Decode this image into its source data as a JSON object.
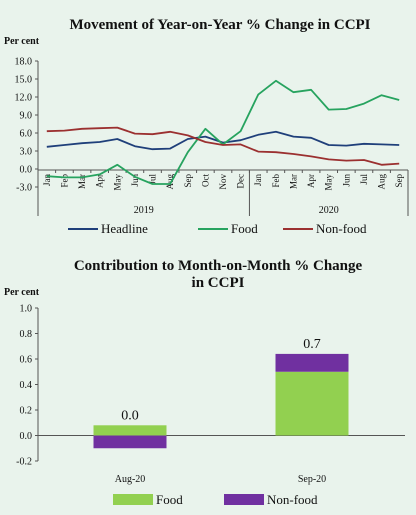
{
  "chart_data": [
    {
      "type": "line",
      "title": "Movement of Year-on-Year % Change in CCPI",
      "ylabel": "Per cent",
      "ylim": [
        -3.0,
        18.0
      ],
      "yticks": [
        "18.0",
        "15.0",
        "12.0",
        "9.0",
        "6.0",
        "3.0",
        "0.0",
        "-3.0"
      ],
      "categories": [
        "Jan",
        "Feb",
        "Mar",
        "Apr",
        "May",
        "Jun",
        "Jul",
        "Aug",
        "Sep",
        "Oct",
        "Nov",
        "Dec",
        "Jan",
        "Feb",
        "Mar",
        "Apr",
        "May",
        "Jun",
        "Jul",
        "Aug",
        "Sep"
      ],
      "year_labels": [
        "2019",
        "2020"
      ],
      "grid": false,
      "legend_position": "bottom",
      "series": [
        {
          "name": "Headline",
          "color": "#1f3f7a",
          "values": [
            3.7,
            4.0,
            4.3,
            4.5,
            5.0,
            3.8,
            3.3,
            3.4,
            5.0,
            5.4,
            4.4,
            4.8,
            5.7,
            6.2,
            5.4,
            5.2,
            4.0,
            3.9,
            4.2,
            4.1,
            4.0
          ]
        },
        {
          "name": "Food",
          "color": "#27a35f",
          "values": [
            -1.2,
            -1.4,
            -1.4,
            -0.9,
            0.7,
            -1.3,
            -2.5,
            -2.5,
            2.8,
            6.7,
            4.1,
            6.3,
            12.4,
            14.7,
            12.8,
            13.2,
            9.9,
            10.0,
            10.9,
            12.3,
            11.5
          ]
        },
        {
          "name": "Non-food",
          "color": "#9b3030",
          "values": [
            6.3,
            6.4,
            6.7,
            6.8,
            6.9,
            5.9,
            5.8,
            6.2,
            5.6,
            4.5,
            4.0,
            4.1,
            2.9,
            2.8,
            2.5,
            2.1,
            1.6,
            1.4,
            1.5,
            0.7,
            0.9
          ]
        }
      ]
    },
    {
      "type": "bar",
      "title": "Contribution to Month-on-Month % Change in CCPI",
      "title_lines": [
        "Contribution to Month-on-Month % Change",
        "in CCPI"
      ],
      "ylabel": "Per cent",
      "ylim": [
        -0.2,
        1.0
      ],
      "yticks": [
        "1.0",
        "0.8",
        "0.6",
        "0.4",
        "0.2",
        "0.0",
        "-0.2"
      ],
      "categories": [
        "Aug-20",
        "Sep-20"
      ],
      "totals": [
        "0.0",
        "0.7"
      ],
      "stacked": true,
      "grid": false,
      "legend_position": "bottom",
      "series": [
        {
          "name": "Food",
          "color": "#92d050",
          "values": [
            0.08,
            0.5
          ]
        },
        {
          "name": "Non-food",
          "color": "#7030a0",
          "values": [
            -0.1,
            0.14
          ]
        }
      ]
    }
  ]
}
